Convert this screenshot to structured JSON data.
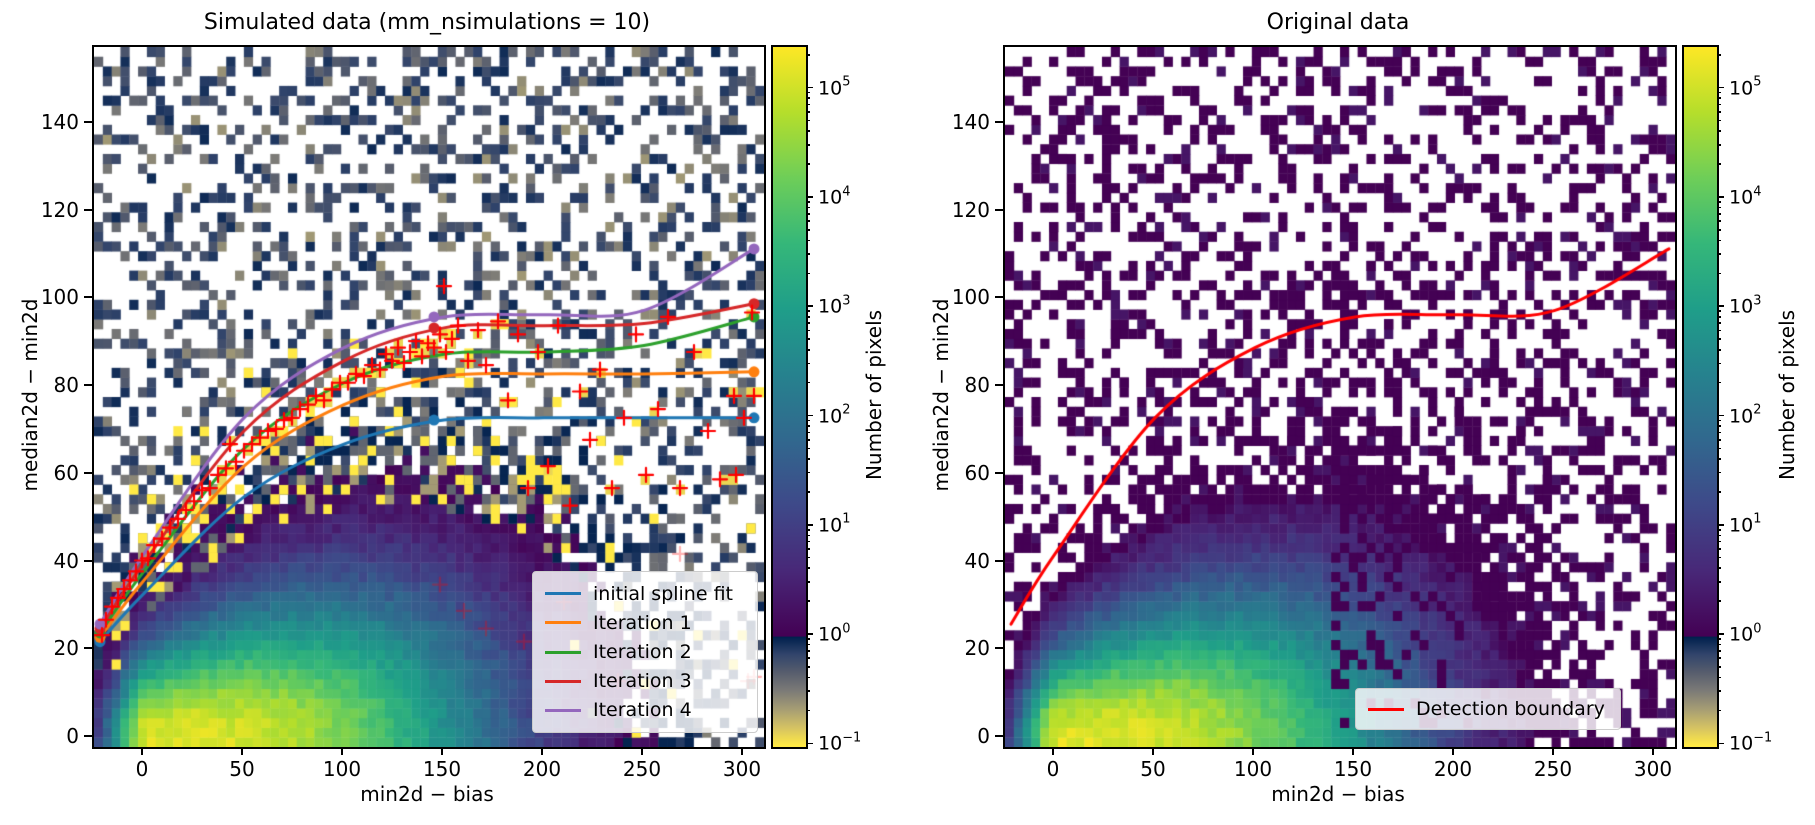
{
  "left_plot": {
    "title": "Simulated data (mm_nsimulations = 10)",
    "xlabel": "min2d − bias",
    "ylabel": "median2d − min2d",
    "legend": [
      {
        "label": "initial spline fit",
        "color": "#1f77b4"
      },
      {
        "label": "Iteration 1",
        "color": "#ff7f0e"
      },
      {
        "label": "Iteration 2",
        "color": "#2ca02c"
      },
      {
        "label": "Iteration 3",
        "color": "#d62728"
      },
      {
        "label": "Iteration 4",
        "color": "#9467bd"
      }
    ]
  },
  "right_plot": {
    "title": "Original data",
    "xlabel": "min2d − bias",
    "ylabel": "median2d − min2d",
    "legend": [
      {
        "label": "Detection boundary",
        "color": "#ff0000"
      }
    ]
  },
  "colorbar": {
    "label": "Number of pixels",
    "scale": "log",
    "tick_exponents": [
      5,
      4,
      3,
      2,
      1,
      0,
      -1
    ],
    "top_pct": 6.1,
    "decade_pct": 15.61,
    "gradient_stops": [
      [
        "#fde725",
        0
      ],
      [
        "#b5de2b",
        9.35
      ],
      [
        "#6ece58",
        18.7
      ],
      [
        "#35b779",
        28.05
      ],
      [
        "#1f9e89",
        37.4
      ],
      [
        "#26828e",
        46.75
      ],
      [
        "#31688e",
        56.1
      ],
      [
        "#3e4989",
        65.45
      ],
      [
        "#482878",
        74.8
      ],
      [
        "#440154",
        84.15
      ],
      [
        "#00204d",
        84.3
      ],
      [
        "#31446b",
        86.75
      ],
      [
        "#575d6d",
        89.35
      ],
      [
        "#7b7a77",
        91.95
      ],
      [
        "#a59c74",
        94.55
      ],
      [
        "#d3c164",
        97.15
      ],
      [
        "#ffe945",
        99.76
      ],
      [
        "#ffe945",
        100
      ]
    ]
  },
  "chart_data": [
    {
      "type": "heatmap",
      "title": "Simulated data (mm_nsimulations = 10)",
      "xlabel": "min2d − bias",
      "ylabel": "median2d − min2d",
      "xlim": [
        -25,
        310
      ],
      "ylim": [
        -2,
        157.5
      ],
      "x_ticks": [
        0,
        50,
        100,
        150,
        200,
        250,
        300
      ],
      "y_ticks": [
        0,
        20,
        40,
        60,
        80,
        100,
        120,
        140
      ],
      "bins": [
        76,
        72
      ],
      "colorbar_label": "Number of pixels",
      "count_log10_max": 5.4,
      "colormap_ge1": "viridis",
      "colormap_lt1": "cividis",
      "density_model": {
        "peak_xy": [
          3,
          0
        ],
        "x_scale_right": 175,
        "x_pow_right": 3,
        "x_scale_left": 22,
        "x_pow_left": 2,
        "y_base": 13,
        "y_grow": 30,
        "y_tau": 80,
        "log_floor": 0.25
      },
      "curves": [
        {
          "name": "initial spline fit",
          "color": "#1f77b4",
          "points": [
            [
              -22,
              22
            ],
            [
              0,
              33
            ],
            [
              50,
              55
            ],
            [
              100,
              67
            ],
            [
              150,
              72.5
            ],
            [
              200,
              73
            ],
            [
              250,
              73
            ],
            [
              305,
              73
            ]
          ],
          "end_dot": true,
          "start_dot": true,
          "mid_dot": [
            145,
            72.5
          ]
        },
        {
          "name": "Iteration 1",
          "color": "#ff7f0e",
          "points": [
            [
              -22,
              23
            ],
            [
              0,
              36
            ],
            [
              50,
              62
            ],
            [
              100,
              76
            ],
            [
              150,
              82.5
            ],
            [
              200,
              83
            ],
            [
              250,
              83
            ],
            [
              305,
              83.5
            ]
          ],
          "end_dot": true,
          "start_dot": true
        },
        {
          "name": "Iteration 2",
          "color": "#2ca02c",
          "points": [
            [
              -22,
              24
            ],
            [
              0,
              38
            ],
            [
              50,
              66
            ],
            [
              100,
              81
            ],
            [
              150,
              87.5
            ],
            [
              200,
              88
            ],
            [
              250,
              89.5
            ],
            [
              305,
              96
            ]
          ],
          "end_dot": true,
          "start_dot": true
        },
        {
          "name": "Iteration 3",
          "color": "#d62728",
          "points": [
            [
              -22,
              25
            ],
            [
              0,
              40
            ],
            [
              50,
              70
            ],
            [
              100,
              86
            ],
            [
              150,
              93.5
            ],
            [
              200,
              94
            ],
            [
              250,
              94.5
            ],
            [
              305,
              99
            ]
          ],
          "end_dot": true,
          "start_dot": true,
          "mid_dot": [
            145,
            93.5
          ]
        },
        {
          "name": "Iteration 4",
          "color": "#9467bd",
          "points": [
            [
              -22,
              26
            ],
            [
              0,
              42
            ],
            [
              50,
              73
            ],
            [
              100,
              89
            ],
            [
              150,
              96
            ],
            [
              200,
              96.5
            ],
            [
              250,
              97.5
            ],
            [
              305,
              111.5
            ]
          ],
          "end_dot": true,
          "start_dot": true,
          "mid_dot": [
            145,
            96
          ]
        }
      ],
      "outlier_crosses": [
        [
          -21,
          23.5
        ],
        [
          -19,
          27
        ],
        [
          -16,
          30
        ],
        [
          -13,
          32
        ],
        [
          -10,
          34
        ],
        [
          -7,
          36
        ],
        [
          -4,
          38
        ],
        [
          -1,
          40.5
        ],
        [
          2,
          41
        ],
        [
          5,
          44
        ],
        [
          9,
          45.5
        ],
        [
          13,
          48
        ],
        [
          17,
          50
        ],
        [
          21,
          52
        ],
        [
          25,
          54
        ],
        [
          29,
          56.5
        ],
        [
          33,
          57
        ],
        [
          37,
          60
        ],
        [
          41,
          61.5
        ],
        [
          43,
          67
        ],
        [
          46,
          63
        ],
        [
          50,
          65.5
        ],
        [
          54,
          67
        ],
        [
          58,
          68.5
        ],
        [
          62,
          70
        ],
        [
          66,
          70.5
        ],
        [
          70,
          72.5
        ],
        [
          74,
          73
        ],
        [
          78,
          75
        ],
        [
          82,
          76
        ],
        [
          86,
          78
        ],
        [
          90,
          77
        ],
        [
          94,
          79.5
        ],
        [
          98,
          81
        ],
        [
          102,
          81
        ],
        [
          106,
          83
        ],
        [
          110,
          82.5
        ],
        [
          114,
          85
        ],
        [
          118,
          84
        ],
        [
          121,
          87.5
        ],
        [
          124,
          86
        ],
        [
          127,
          89
        ],
        [
          130,
          85.5
        ],
        [
          133,
          88
        ],
        [
          136,
          90.5
        ],
        [
          139,
          87
        ],
        [
          142,
          90
        ],
        [
          145,
          89
        ],
        [
          148,
          92
        ],
        [
          151,
          88
        ],
        [
          154,
          91
        ],
        [
          157,
          94
        ],
        [
          150,
          103
        ],
        [
          162,
          86
        ],
        [
          167,
          93
        ],
        [
          171,
          85
        ],
        [
          177,
          95
        ],
        [
          182,
          77
        ],
        [
          187,
          92
        ],
        [
          192,
          57
        ],
        [
          197,
          88
        ],
        [
          202,
          62
        ],
        [
          207,
          94
        ],
        [
          213,
          53
        ],
        [
          218,
          79
        ],
        [
          223,
          68
        ],
        [
          228,
          84
        ],
        [
          234,
          57
        ],
        [
          240,
          73
        ],
        [
          246,
          92
        ],
        [
          251,
          60
        ],
        [
          257,
          75
        ],
        [
          262,
          96
        ],
        [
          268,
          57
        ],
        [
          275,
          88
        ],
        [
          282,
          70
        ],
        [
          288,
          59
        ],
        [
          295,
          78
        ],
        [
          300,
          73
        ],
        [
          304,
          97
        ],
        [
          305,
          78
        ],
        [
          296,
          60
        ]
      ],
      "faded_crosses": [
        [
          148,
          35
        ],
        [
          160,
          29
        ],
        [
          171,
          25
        ],
        [
          237,
          13
        ],
        [
          302,
          13
        ],
        [
          268,
          42
        ],
        [
          210,
          31
        ],
        [
          190,
          22
        ],
        [
          305,
          14
        ]
      ]
    },
    {
      "type": "heatmap",
      "title": "Original data",
      "xlabel": "min2d − bias",
      "ylabel": "median2d − min2d",
      "xlim": [
        -25,
        310
      ],
      "ylim": [
        -2,
        157.5
      ],
      "x_ticks": [
        0,
        50,
        100,
        150,
        200,
        250,
        300
      ],
      "y_ticks": [
        0,
        20,
        40,
        60,
        80,
        100,
        120,
        140
      ],
      "bins": [
        76,
        72
      ],
      "colorbar_label": "Number of pixels",
      "count_log10_max": 5.4,
      "colormap_ge1": "viridis",
      "colormap_lt1": "cividis",
      "curves": [
        {
          "name": "Detection boundary",
          "color": "#ff0000",
          "points": [
            [
              -22,
              26
            ],
            [
              0,
              42
            ],
            [
              50,
              73
            ],
            [
              100,
              89
            ],
            [
              150,
              96
            ],
            [
              200,
              96.5
            ],
            [
              250,
              97.5
            ],
            [
              307,
              111.5
            ]
          ],
          "end_dot": false,
          "start_dot": false
        }
      ],
      "sparse_cells": [
        [
          0,
          117
        ],
        [
          6,
          124
        ],
        [
          2,
          131
        ],
        [
          9,
          139
        ],
        [
          4,
          146
        ],
        [
          10,
          153
        ],
        [
          -4,
          128
        ],
        [
          13,
          143
        ],
        [
          1,
          155
        ],
        [
          16,
          150
        ],
        [
          22,
          120
        ],
        [
          8,
          104
        ],
        [
          -2,
          100
        ],
        [
          27,
          141
        ],
        [
          30,
          92
        ],
        [
          36,
          80
        ],
        [
          120,
          100
        ],
        [
          128,
          104
        ],
        [
          136,
          108
        ],
        [
          150,
          100
        ],
        [
          160,
          108
        ],
        [
          172,
          98
        ],
        [
          190,
          102
        ],
        [
          206,
          96
        ],
        [
          218,
          88
        ],
        [
          224,
          78
        ],
        [
          232,
          70
        ],
        [
          244,
          60
        ],
        [
          251,
          47
        ],
        [
          240,
          40
        ],
        [
          252,
          22
        ],
        [
          260,
          14
        ],
        [
          270,
          18
        ],
        [
          283,
          8
        ],
        [
          296,
          12
        ],
        [
          236,
          30
        ],
        [
          228,
          52
        ],
        [
          214,
          64
        ],
        [
          204,
          74
        ],
        [
          196,
          84
        ],
        [
          184,
          90
        ],
        [
          176,
          86
        ],
        [
          168,
          94
        ],
        [
          158,
          90
        ],
        [
          146,
          94
        ],
        [
          134,
          98
        ],
        [
          126,
          96
        ]
      ]
    }
  ]
}
